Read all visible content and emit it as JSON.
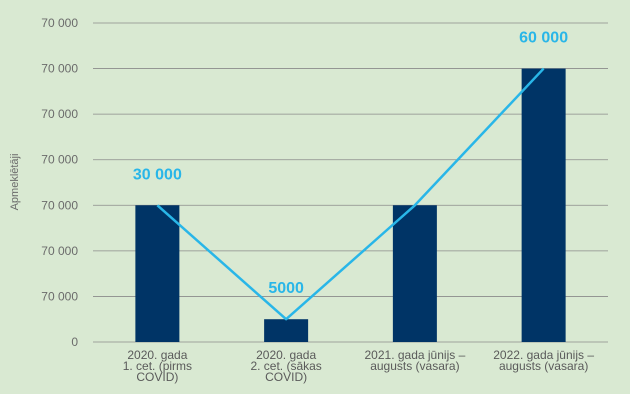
{
  "chart_data": {
    "type": "bar",
    "title": "",
    "xlabel": "",
    "ylabel": "Apmeklētāji",
    "ylim": [
      0,
      70000
    ],
    "grid": true,
    "y_tick_labels": [
      "0",
      "70 000",
      "70 000",
      "70 000",
      "70 000",
      "70 000",
      "70 000",
      "70 000"
    ],
    "categories": [
      [
        "2020. gada",
        "1. cet. (pirms",
        "COVID)"
      ],
      [
        "2020. gada",
        "2. cet. (sākas",
        "COVID)"
      ],
      [
        "2021. gada jūnijs –",
        "augusts (vasara)"
      ],
      [
        "2022. gada jūnijs –",
        "augusts (vasara)"
      ]
    ],
    "series": [
      {
        "type": "bar",
        "values": [
          30000,
          5000,
          30000,
          60000
        ]
      },
      {
        "type": "line",
        "values": [
          30000,
          5000,
          30000,
          60000
        ]
      }
    ],
    "data_labels": [
      "30 000",
      "5000",
      "",
      "60 000"
    ],
    "colors": {
      "bar": "#003466",
      "line": "#29b6e8",
      "label": "#29b6e8",
      "grid": "#8a8a8a"
    }
  }
}
